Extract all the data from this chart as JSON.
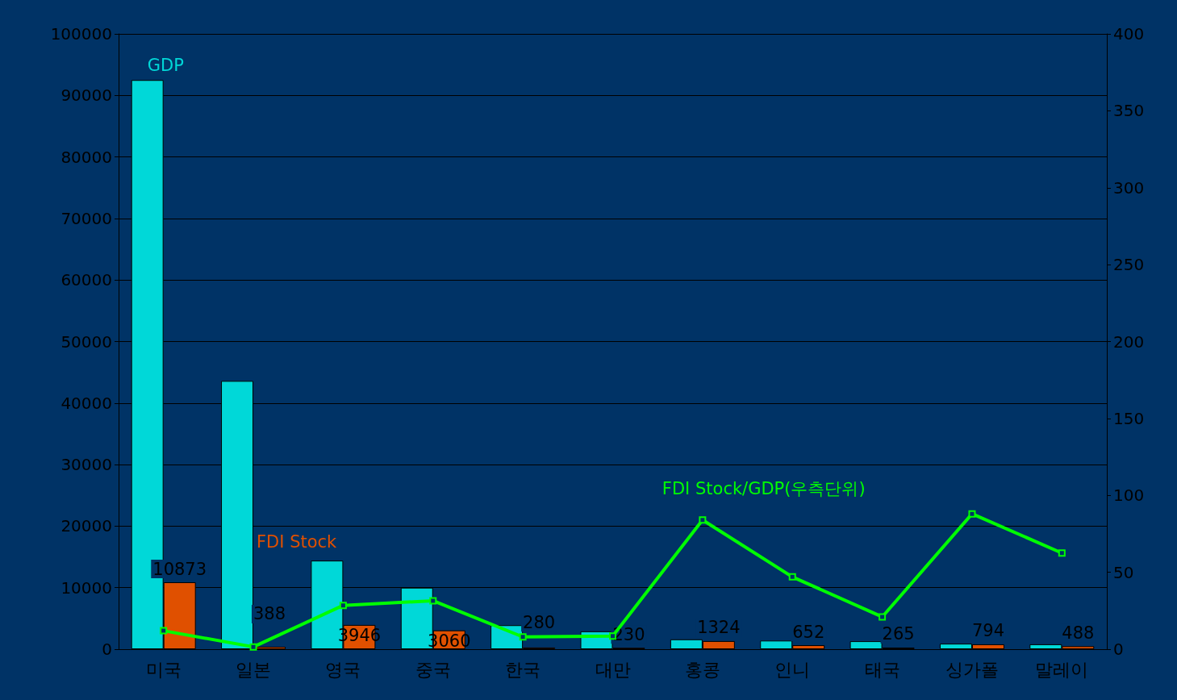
{
  "chart_data": {
    "type": "bar",
    "categories": [
      "미국",
      "일본",
      "영국",
      "중국",
      "한국",
      "대만",
      "홍콩",
      "인니",
      "태국",
      "싱가폴",
      "말레이"
    ],
    "series": [
      {
        "name": "GDP",
        "color": "#00d8d8",
        "values": [
          92500,
          43600,
          14400,
          10000,
          3900,
          2900,
          1600,
          1400,
          1300,
          900,
          800
        ]
      },
      {
        "name": "FDI Stock",
        "color": "#e05000",
        "values": [
          10873,
          388,
          3946,
          3060,
          280,
          230,
          1324,
          652,
          265,
          794,
          488
        ],
        "value_labels": [
          "10873",
          "388",
          "3946",
          "3060",
          "280",
          "230",
          "1324",
          "652",
          "265",
          "794",
          "488"
        ]
      },
      {
        "name": "FDI Stock/GDP(우측단위)",
        "type": "line",
        "axis": "y2",
        "color": "#00ff00",
        "values": [
          12,
          1.5,
          28.5,
          31.5,
          8,
          8.5,
          84,
          47,
          21,
          88,
          62.5
        ]
      }
    ],
    "ylim": [
      0,
      100000
    ],
    "yticks": [
      0,
      10000,
      20000,
      30000,
      40000,
      50000,
      60000,
      70000,
      80000,
      90000,
      100000
    ],
    "y2lim": [
      0,
      400
    ],
    "y2ticks": [
      0,
      50,
      100,
      150,
      200,
      250,
      300,
      350,
      400
    ],
    "grid": "y",
    "legend": false,
    "marker": "square",
    "line_style": "solid"
  }
}
